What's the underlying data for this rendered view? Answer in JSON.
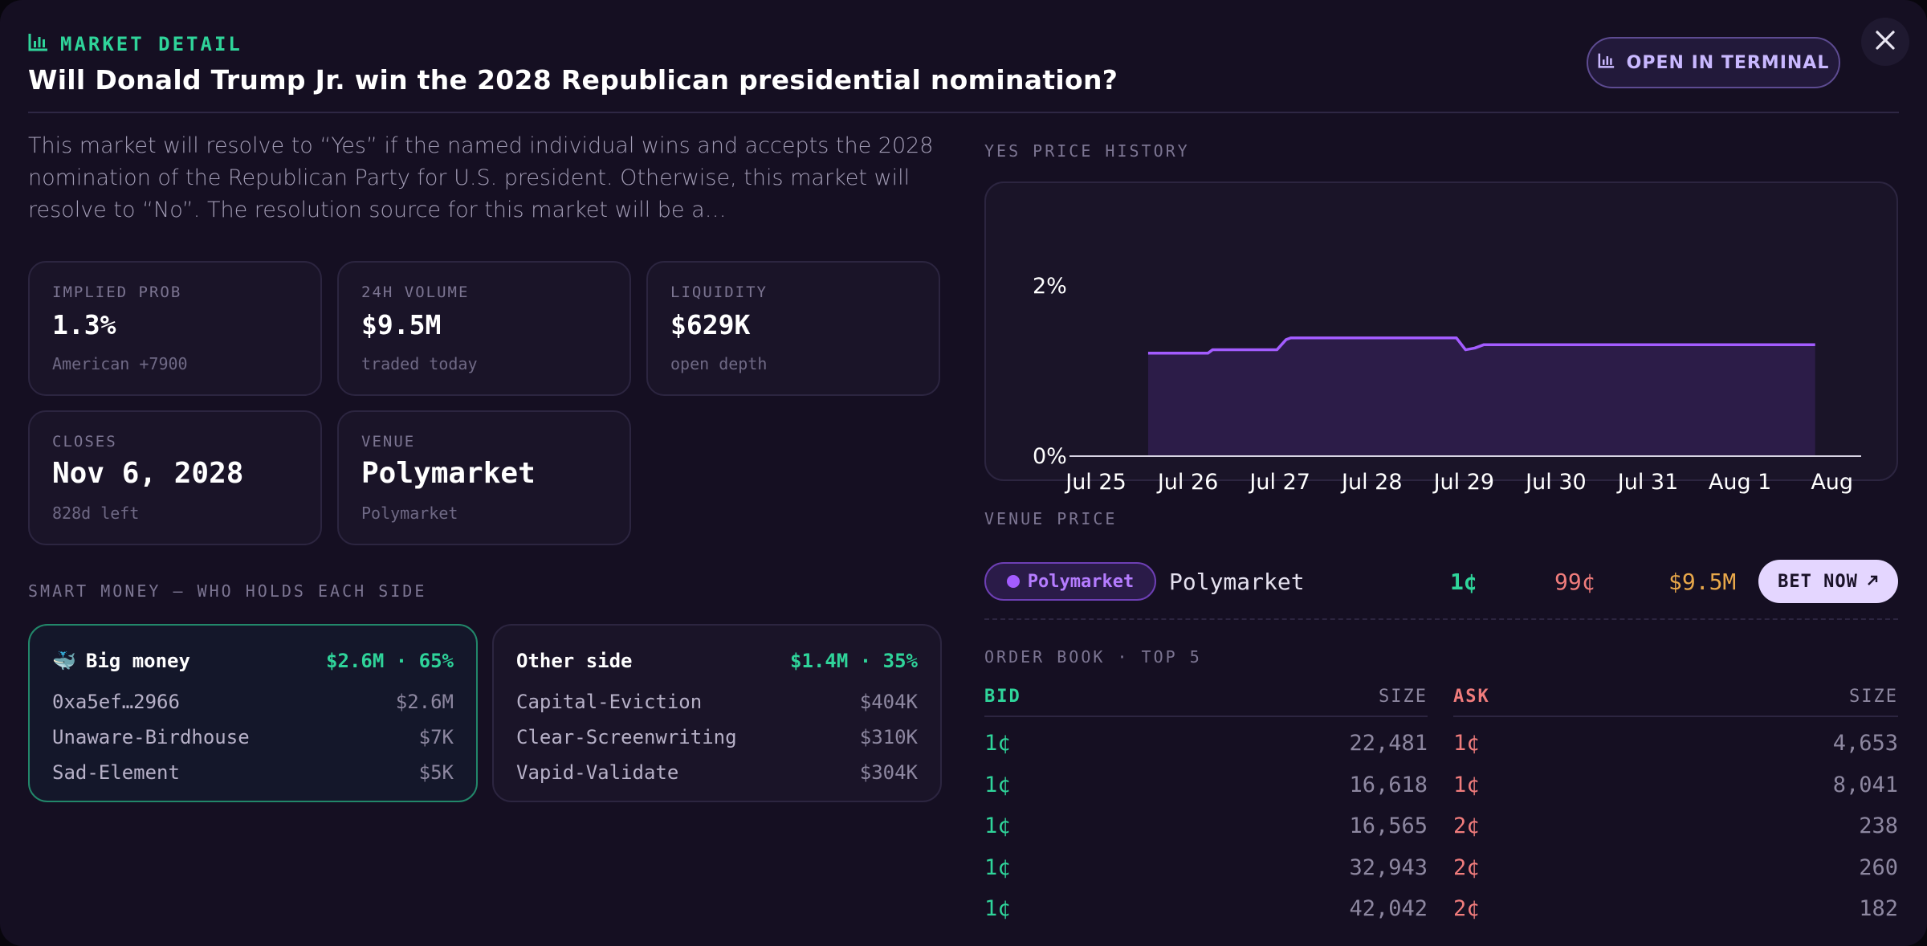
{
  "header": {
    "kicker": "MARKET DETAIL",
    "title": "Will Donald Trump Jr. win the 2028 Republican presidential nomination?",
    "terminal_button": "OPEN IN TERMINAL",
    "close_icon": "close-icon",
    "kicker_icon": "bar-chart-icon"
  },
  "description": "This market will resolve to “Yes” if the named individual wins and accepts the 2028 nomination of the Republican Party for U.S. president. Otherwise, this market will resolve to “No”. The resolution source for this market will be a…",
  "stats": [
    {
      "label": "IMPLIED PROB",
      "value": "1.3%",
      "sub": "American +7900"
    },
    {
      "label": "24H VOLUME",
      "value": "$9.5M",
      "sub": "traded today"
    },
    {
      "label": "LIQUIDITY",
      "value": "$629K",
      "sub": "open depth"
    },
    {
      "label": "CLOSES",
      "value": "Nov 6, 2028",
      "sub": "828d left"
    },
    {
      "label": "VENUE",
      "value": "Polymarket",
      "sub": "Polymarket"
    }
  ],
  "smart_money": {
    "title": "SMART MONEY — WHO HOLDS EACH SIDE",
    "big": {
      "icon": "🐳",
      "name": "Big money",
      "amount": "$2.6M · 65%",
      "rows": [
        {
          "holder": "0xa5ef…2966",
          "value": "$2.6M"
        },
        {
          "holder": "Unaware-Birdhouse",
          "value": "$7K"
        },
        {
          "holder": "Sad-Element",
          "value": "$5K"
        }
      ]
    },
    "other": {
      "name": "Other side",
      "amount": "$1.4M · 35%",
      "rows": [
        {
          "holder": "Capital-Eviction",
          "value": "$404K"
        },
        {
          "holder": "Clear-Screenwriting",
          "value": "$310K"
        },
        {
          "holder": "Vapid-Validate",
          "value": "$304K"
        }
      ]
    }
  },
  "chart_title": "YES PRICE HISTORY",
  "chart_data": {
    "type": "area",
    "title": "YES PRICE HISTORY",
    "x_tick_labels": [
      "Jul 25",
      "Jul 26",
      "Jul 27",
      "Jul 28",
      "Jul 29",
      "Jul 30",
      "Jul 31",
      "Aug 1",
      "Aug"
    ],
    "y_tick_labels": [
      "0%",
      "2%"
    ],
    "ylim": [
      0,
      2
    ],
    "xlim": [
      0,
      8.5
    ],
    "x": [
      0.75,
      1.4,
      1.45,
      2.15,
      2.25,
      2.3,
      4.1,
      4.2,
      4.3,
      4.4,
      8.0
    ],
    "values": [
      1.2,
      1.2,
      1.24,
      1.24,
      1.36,
      1.38,
      1.38,
      1.24,
      1.26,
      1.3,
      1.3
    ],
    "color": "#a35cff",
    "grid": false
  },
  "venue_price": {
    "title": "VENUE PRICE",
    "pill": "Polymarket",
    "name": "Polymarket",
    "yes": "1¢",
    "no": "99¢",
    "volume": "$9.5M",
    "bet_button": "BET NOW"
  },
  "order_book": {
    "title": "ORDER BOOK · TOP 5",
    "bid_header": "BID",
    "size_header": "SIZE",
    "ask_header": "ASK",
    "bids": [
      {
        "price": "1¢",
        "size": "22,481"
      },
      {
        "price": "1¢",
        "size": "16,618"
      },
      {
        "price": "1¢",
        "size": "16,565"
      },
      {
        "price": "1¢",
        "size": "32,943"
      },
      {
        "price": "1¢",
        "size": "42,042"
      }
    ],
    "asks": [
      {
        "price": "1¢",
        "size": "4,653"
      },
      {
        "price": "1¢",
        "size": "8,041"
      },
      {
        "price": "2¢",
        "size": "238"
      },
      {
        "price": "2¢",
        "size": "260"
      },
      {
        "price": "2¢",
        "size": "182"
      }
    ]
  }
}
